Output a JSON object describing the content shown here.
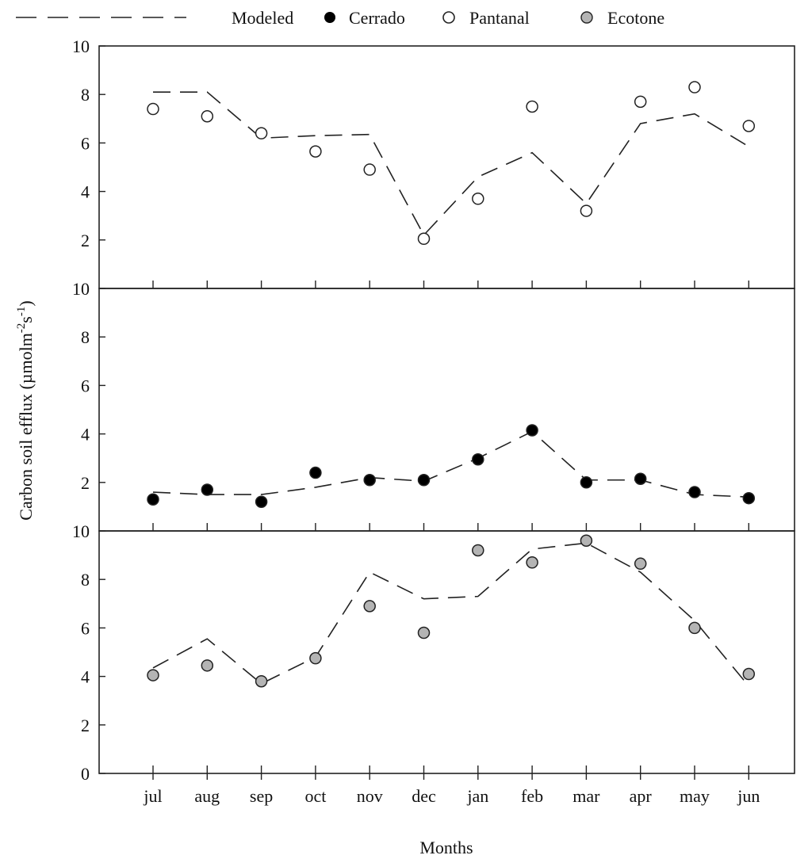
{
  "chart_data": {
    "type": "line",
    "x_label": "Months",
    "y_label": {
      "main": "Carbon soil efflux (µmolm",
      "sup1": "-2",
      "mid": "s",
      "sup2": "-1",
      "end": ")"
    },
    "categories": [
      "jul",
      "aug",
      "sep",
      "oct",
      "nov",
      "dec",
      "jan",
      "feb",
      "mar",
      "apr",
      "may",
      "jun"
    ],
    "legend": {
      "position": "top",
      "entries": [
        {
          "label": "Modeled",
          "marker": "dashed-line"
        },
        {
          "label": "Cerrado",
          "marker": "filled-circle",
          "color": "#000000"
        },
        {
          "label": "Pantanal",
          "marker": "open-circle",
          "color": "#ffffff"
        },
        {
          "label": "Ecotone",
          "marker": "grey-circle",
          "color": "#b4b4b4"
        }
      ]
    },
    "panels": [
      {
        "site": "Pantanal",
        "ylim": [
          0,
          10
        ],
        "yticks": [
          "2",
          "4",
          "6",
          "8",
          "10"
        ],
        "observed": [
          7.4,
          7.1,
          6.4,
          5.65,
          4.9,
          2.05,
          3.7,
          7.5,
          3.2,
          7.7,
          8.3,
          6.7
        ],
        "modeled": [
          8.1,
          8.1,
          6.2,
          6.3,
          6.35,
          2.2,
          4.6,
          5.6,
          3.5,
          6.8,
          7.2,
          5.85
        ],
        "marker_color": "#ffffff"
      },
      {
        "site": "Cerrado",
        "ylim": [
          0,
          10
        ],
        "yticks": [
          "2",
          "4",
          "6",
          "8",
          "10"
        ],
        "observed": [
          1.3,
          1.7,
          1.2,
          2.4,
          2.1,
          2.1,
          2.95,
          4.15,
          2.0,
          2.15,
          1.6,
          1.35
        ],
        "modeled": [
          1.6,
          1.5,
          1.5,
          1.8,
          2.2,
          2.05,
          3.0,
          4.1,
          2.1,
          2.1,
          1.5,
          1.4
        ],
        "marker_color": "#000000"
      },
      {
        "site": "Ecotone",
        "ylim": [
          0,
          10
        ],
        "yticks": [
          "0",
          "2",
          "4",
          "6",
          "8",
          "10"
        ],
        "observed": [
          4.05,
          4.45,
          3.8,
          4.75,
          6.9,
          5.8,
          9.2,
          8.7,
          9.6,
          8.65,
          6.0,
          4.1
        ],
        "modeled": [
          4.35,
          5.55,
          3.7,
          4.8,
          8.3,
          7.2,
          7.3,
          9.25,
          9.5,
          8.3,
          6.3,
          3.6
        ],
        "marker_color": "#b4b4b4"
      }
    ]
  }
}
